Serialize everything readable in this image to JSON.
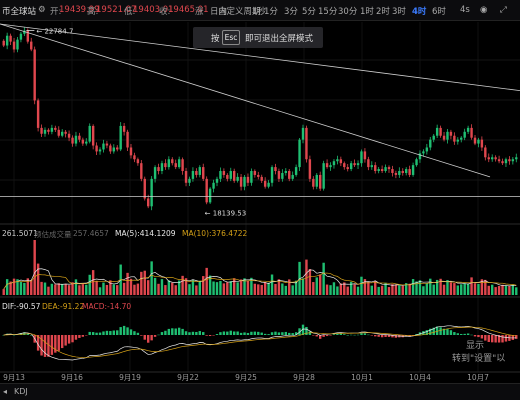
{
  "toolbar": {
    "symbol": "币全球站",
    "open_label": "开:",
    "open": "19439.99",
    "high_label": "高:",
    "high": "19521.07",
    "low_label": "低:",
    "low": "19403.01",
    "close_label": "收:",
    "close": "19465.01",
    "change_label": "涨",
    "timeframes": [
      "日内",
      "自定义周期",
      "1秒",
      "1分",
      "3分",
      "5分",
      "15分",
      "30分",
      "1时",
      "2时",
      "3时",
      "4时",
      "6时"
    ],
    "active_timeframe": "4时",
    "right_label": "4s",
    "icons": [
      "camera-icon",
      "fullscreen-icon"
    ]
  },
  "esc_banner": {
    "prefix": "按",
    "key": "Esc",
    "suffix": "即可退出全屏模式"
  },
  "annotations": {
    "high": "22784.7",
    "low": "18139.53"
  },
  "volume_header": {
    "value": "261.5071",
    "label": "预估成交量",
    "label_value": "257.4657",
    "ma5": "MA(5):414.1209",
    "ma10": "MA(10):376.4722"
  },
  "macd_header": {
    "dif": "DIF:-90.57",
    "dea": "DEA:-91.22",
    "macd": "MACD:-14.70"
  },
  "watermark": [
    "显示",
    "转到\"设置\"以"
  ],
  "bottom_bar": {
    "label": "KDJ"
  },
  "colors": {
    "up": "#1fbf72",
    "down": "#e0474e",
    "ma5": "#e8e8e8",
    "ma10": "#d4a017",
    "dif": "#e8e8e8",
    "dea": "#d4a017",
    "line": "#cfcfcf"
  },
  "chart_data": {
    "type": "candlestick",
    "timeframe": "4h",
    "x_tick_labels": [
      "9月13",
      "9月16",
      "9月19",
      "9月22",
      "9月25",
      "9月28",
      "10月1",
      "10月4",
      "10月7"
    ],
    "y_range": [
      17900,
      23000
    ],
    "closes": [
      22400,
      22650,
      22500,
      22300,
      22550,
      22700,
      22780,
      22500,
      22300,
      21000,
      20300,
      20150,
      20250,
      20200,
      20300,
      20250,
      20100,
      20200,
      20150,
      20050,
      19900,
      20100,
      20000,
      19900,
      19950,
      20350,
      19850,
      19700,
      19750,
      19900,
      19850,
      19700,
      19800,
      19750,
      20350,
      20200,
      19800,
      19600,
      19500,
      19400,
      19000,
      18500,
      18300,
      19000,
      19300,
      19200,
      19400,
      19300,
      19500,
      19400,
      19300,
      19500,
      19200,
      18900,
      19000,
      19200,
      19100,
      19300,
      19000,
      18400,
      18750,
      18900,
      19000,
      19200,
      19100,
      19000,
      19200,
      18950,
      19050,
      18800,
      19050,
      18900,
      19200,
      19100,
      19050,
      18950,
      18800,
      18900,
      19300,
      19200,
      19000,
      19150,
      19200,
      19000,
      19100,
      19300,
      20000,
      20300,
      19500,
      19000,
      18800,
      19100,
      18750,
      19400,
      19300,
      19350,
      19450,
      19500,
      19400,
      19300,
      19250,
      19400,
      19350,
      19400,
      19700,
      19500,
      19300,
      19350,
      19200,
      19250,
      19200,
      19300,
      19250,
      19150,
      19100,
      19200,
      19150,
      19250,
      19100,
      19350,
      19500,
      19650,
      19700,
      19800,
      20000,
      20100,
      20300,
      20100,
      20000,
      20200,
      20100,
      19950,
      20000,
      20050,
      20200,
      20300,
      20050,
      19900,
      20000,
      19800,
      19550,
      19500,
      19550,
      19500,
      19450,
      19400,
      19500,
      19450,
      19500,
      19550
    ],
    "volume_ma5": 414.1209,
    "volume_ma10": 376.4722,
    "macd": {
      "dif": -90.57,
      "dea": -91.22,
      "macd": -14.7
    }
  }
}
